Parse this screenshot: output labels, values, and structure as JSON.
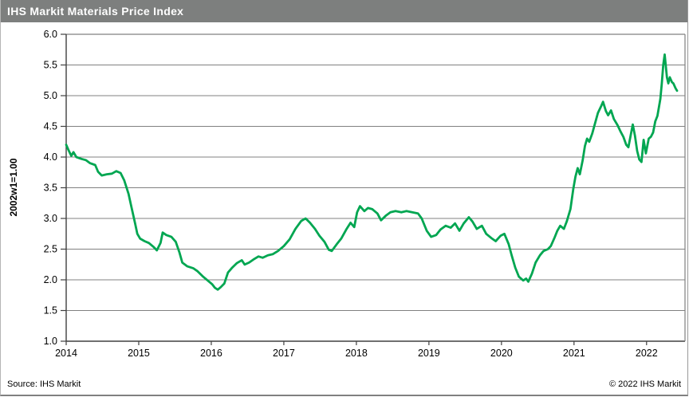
{
  "header": {
    "title": "IHS Markit Materials Price Index",
    "bg_color": "#7d7f7e",
    "fg_color": "#ffffff"
  },
  "footer": {
    "source": "Source: IHS Markit",
    "copyright": "© 2022 IHS Markit"
  },
  "chart_data": {
    "type": "line",
    "title": "IHS Markit Materials Price Index",
    "xlabel": "",
    "ylabel": "2002w1=1.00",
    "ylim": [
      1.0,
      6.0
    ],
    "xlim": [
      2014.0,
      2022.53
    ],
    "ytick_step": 0.5,
    "ytick_labels": [
      "1.0",
      "1.5",
      "2.0",
      "2.5",
      "3.0",
      "3.5",
      "4.0",
      "4.5",
      "5.0",
      "5.5",
      "6.0"
    ],
    "xtick_labels": [
      "2014",
      "2015",
      "2016",
      "2017",
      "2018",
      "2019",
      "2020",
      "2021",
      "2022"
    ],
    "grid": "horizontal",
    "legend": "none",
    "line_color": "#00a651",
    "grid_color": "#808080",
    "axis_color": "#404040",
    "series": [
      {
        "name": "Materials Price Index (2002w1=1.00)",
        "points": [
          [
            2014.0,
            4.2
          ],
          [
            2014.03,
            4.12
          ],
          [
            2014.07,
            4.02
          ],
          [
            2014.1,
            4.08
          ],
          [
            2014.14,
            4.0
          ],
          [
            2014.21,
            3.97
          ],
          [
            2014.27,
            3.95
          ],
          [
            2014.33,
            3.9
          ],
          [
            2014.4,
            3.87
          ],
          [
            2014.44,
            3.76
          ],
          [
            2014.49,
            3.7
          ],
          [
            2014.56,
            3.72
          ],
          [
            2014.63,
            3.73
          ],
          [
            2014.69,
            3.77
          ],
          [
            2014.75,
            3.74
          ],
          [
            2014.8,
            3.62
          ],
          [
            2014.86,
            3.4
          ],
          [
            2014.9,
            3.18
          ],
          [
            2014.95,
            2.92
          ],
          [
            2014.98,
            2.75
          ],
          [
            2015.02,
            2.67
          ],
          [
            2015.08,
            2.63
          ],
          [
            2015.14,
            2.6
          ],
          [
            2015.2,
            2.54
          ],
          [
            2015.25,
            2.48
          ],
          [
            2015.3,
            2.6
          ],
          [
            2015.33,
            2.77
          ],
          [
            2015.38,
            2.73
          ],
          [
            2015.45,
            2.7
          ],
          [
            2015.51,
            2.62
          ],
          [
            2015.56,
            2.45
          ],
          [
            2015.6,
            2.28
          ],
          [
            2015.67,
            2.22
          ],
          [
            2015.75,
            2.19
          ],
          [
            2015.81,
            2.14
          ],
          [
            2015.88,
            2.06
          ],
          [
            2015.95,
            1.99
          ],
          [
            2016.01,
            1.93
          ],
          [
            2016.05,
            1.87
          ],
          [
            2016.09,
            1.84
          ],
          [
            2016.13,
            1.88
          ],
          [
            2016.18,
            1.94
          ],
          [
            2016.23,
            2.12
          ],
          [
            2016.29,
            2.2
          ],
          [
            2016.35,
            2.27
          ],
          [
            2016.42,
            2.32
          ],
          [
            2016.46,
            2.25
          ],
          [
            2016.52,
            2.28
          ],
          [
            2016.58,
            2.33
          ],
          [
            2016.65,
            2.38
          ],
          [
            2016.71,
            2.36
          ],
          [
            2016.78,
            2.4
          ],
          [
            2016.85,
            2.42
          ],
          [
            2016.92,
            2.47
          ],
          [
            2017.0,
            2.55
          ],
          [
            2017.08,
            2.66
          ],
          [
            2017.16,
            2.83
          ],
          [
            2017.24,
            2.96
          ],
          [
            2017.3,
            3.0
          ],
          [
            2017.36,
            2.93
          ],
          [
            2017.43,
            2.83
          ],
          [
            2017.49,
            2.72
          ],
          [
            2017.56,
            2.62
          ],
          [
            2017.62,
            2.49
          ],
          [
            2017.66,
            2.47
          ],
          [
            2017.73,
            2.58
          ],
          [
            2017.79,
            2.67
          ],
          [
            2017.86,
            2.82
          ],
          [
            2017.92,
            2.93
          ],
          [
            2017.97,
            2.86
          ],
          [
            2018.01,
            3.1
          ],
          [
            2018.05,
            3.2
          ],
          [
            2018.11,
            3.12
          ],
          [
            2018.16,
            3.17
          ],
          [
            2018.22,
            3.15
          ],
          [
            2018.29,
            3.08
          ],
          [
            2018.34,
            2.97
          ],
          [
            2018.41,
            3.05
          ],
          [
            2018.47,
            3.1
          ],
          [
            2018.54,
            3.12
          ],
          [
            2018.62,
            3.1
          ],
          [
            2018.69,
            3.12
          ],
          [
            2018.77,
            3.1
          ],
          [
            2018.85,
            3.08
          ],
          [
            2018.9,
            3.0
          ],
          [
            2018.97,
            2.8
          ],
          [
            2019.03,
            2.7
          ],
          [
            2019.1,
            2.73
          ],
          [
            2019.16,
            2.82
          ],
          [
            2019.23,
            2.88
          ],
          [
            2019.3,
            2.85
          ],
          [
            2019.36,
            2.92
          ],
          [
            2019.42,
            2.8
          ],
          [
            2019.48,
            2.92
          ],
          [
            2019.55,
            3.02
          ],
          [
            2019.6,
            2.95
          ],
          [
            2019.66,
            2.83
          ],
          [
            2019.73,
            2.88
          ],
          [
            2019.79,
            2.75
          ],
          [
            2019.86,
            2.68
          ],
          [
            2019.92,
            2.63
          ],
          [
            2019.99,
            2.72
          ],
          [
            2020.04,
            2.75
          ],
          [
            2020.1,
            2.58
          ],
          [
            2020.14,
            2.4
          ],
          [
            2020.19,
            2.2
          ],
          [
            2020.24,
            2.05
          ],
          [
            2020.3,
            1.99
          ],
          [
            2020.34,
            2.02
          ],
          [
            2020.37,
            1.97
          ],
          [
            2020.42,
            2.1
          ],
          [
            2020.47,
            2.28
          ],
          [
            2020.53,
            2.4
          ],
          [
            2020.58,
            2.47
          ],
          [
            2020.64,
            2.5
          ],
          [
            2020.68,
            2.55
          ],
          [
            2020.73,
            2.68
          ],
          [
            2020.77,
            2.8
          ],
          [
            2020.81,
            2.88
          ],
          [
            2020.86,
            2.83
          ],
          [
            2020.9,
            2.95
          ],
          [
            2020.95,
            3.15
          ],
          [
            2020.99,
            3.48
          ],
          [
            2021.02,
            3.68
          ],
          [
            2021.05,
            3.82
          ],
          [
            2021.08,
            3.72
          ],
          [
            2021.12,
            3.95
          ],
          [
            2021.15,
            4.18
          ],
          [
            2021.18,
            4.3
          ],
          [
            2021.21,
            4.25
          ],
          [
            2021.25,
            4.38
          ],
          [
            2021.29,
            4.55
          ],
          [
            2021.33,
            4.72
          ],
          [
            2021.37,
            4.82
          ],
          [
            2021.4,
            4.9
          ],
          [
            2021.44,
            4.75
          ],
          [
            2021.47,
            4.68
          ],
          [
            2021.51,
            4.76
          ],
          [
            2021.55,
            4.62
          ],
          [
            2021.6,
            4.52
          ],
          [
            2021.64,
            4.42
          ],
          [
            2021.68,
            4.33
          ],
          [
            2021.72,
            4.2
          ],
          [
            2021.75,
            4.16
          ],
          [
            2021.78,
            4.35
          ],
          [
            2021.81,
            4.53
          ],
          [
            2021.84,
            4.35
          ],
          [
            2021.87,
            4.1
          ],
          [
            2021.9,
            3.96
          ],
          [
            2021.93,
            3.92
          ],
          [
            2021.96,
            4.28
          ],
          [
            2021.99,
            4.06
          ],
          [
            2022.03,
            4.3
          ],
          [
            2022.06,
            4.33
          ],
          [
            2022.09,
            4.4
          ],
          [
            2022.12,
            4.58
          ],
          [
            2022.15,
            4.67
          ],
          [
            2022.19,
            4.95
          ],
          [
            2022.21,
            5.2
          ],
          [
            2022.23,
            5.5
          ],
          [
            2022.25,
            5.67
          ],
          [
            2022.28,
            5.3
          ],
          [
            2022.3,
            5.2
          ],
          [
            2022.32,
            5.3
          ],
          [
            2022.35,
            5.22
          ],
          [
            2022.37,
            5.2
          ],
          [
            2022.4,
            5.12
          ],
          [
            2022.42,
            5.08
          ]
        ]
      }
    ]
  }
}
